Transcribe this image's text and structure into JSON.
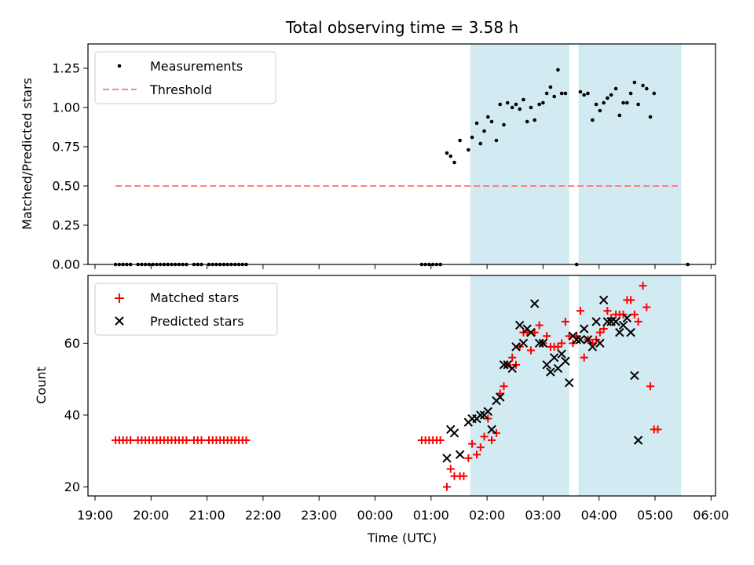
{
  "chart_data": {
    "title": "Total observing time = 3.58 h",
    "xlabel": "Time (UTC)",
    "x_ticks": [
      "19:00",
      "20:00",
      "21:00",
      "22:00",
      "23:00",
      "00:00",
      "01:00",
      "02:00",
      "03:00",
      "04:00",
      "05:00",
      "06:00"
    ],
    "colors": {
      "measure": "#000000",
      "threshold": "#ff7f7f",
      "matched": "#ff0000",
      "predicted": "#000000",
      "shade": "#add8e6"
    },
    "shaded_intervals": [
      [
        "01:42",
        "03:28"
      ],
      [
        "03:38",
        "05:28"
      ]
    ],
    "panels": [
      {
        "type": "scatter",
        "ylabel": "Matched/Predicted stars",
        "ylim": [
          0,
          1.35
        ],
        "y_ticks": [
          "0.00",
          "0.25",
          "0.50",
          "0.75",
          "1.00",
          "1.25"
        ],
        "legend": {
          "position": "upper-left",
          "entries": [
            "Measurements",
            "Threshold"
          ]
        },
        "threshold": {
          "value": 0.5,
          "x_range": [
            "19:22",
            "05:28"
          ]
        },
        "measurements": [
          [
            "19:22",
            0
          ],
          [
            "19:26",
            0
          ],
          [
            "19:30",
            0
          ],
          [
            "19:34",
            0
          ],
          [
            "19:38",
            0
          ],
          [
            "19:46",
            0
          ],
          [
            "19:50",
            0
          ],
          [
            "19:54",
            0
          ],
          [
            "19:58",
            0
          ],
          [
            "20:02",
            0
          ],
          [
            "20:06",
            0
          ],
          [
            "20:10",
            0
          ],
          [
            "20:14",
            0
          ],
          [
            "20:18",
            0
          ],
          [
            "20:22",
            0
          ],
          [
            "20:26",
            0
          ],
          [
            "20:30",
            0
          ],
          [
            "20:34",
            0
          ],
          [
            "20:38",
            0
          ],
          [
            "20:46",
            0
          ],
          [
            "20:50",
            0
          ],
          [
            "20:54",
            0
          ],
          [
            "21:02",
            0
          ],
          [
            "21:06",
            0
          ],
          [
            "21:10",
            0
          ],
          [
            "21:14",
            0
          ],
          [
            "21:18",
            0
          ],
          [
            "21:22",
            0
          ],
          [
            "21:26",
            0
          ],
          [
            "21:30",
            0
          ],
          [
            "21:34",
            0
          ],
          [
            "21:38",
            0
          ],
          [
            "21:42",
            0
          ],
          [
            "00:50",
            0
          ],
          [
            "00:54",
            0
          ],
          [
            "00:58",
            0
          ],
          [
            "01:02",
            0
          ],
          [
            "01:06",
            0
          ],
          [
            "01:10",
            0
          ],
          [
            "01:17",
            0.71
          ],
          [
            "01:21",
            0.69
          ],
          [
            "01:25",
            0.65
          ],
          [
            "01:31",
            0.79
          ],
          [
            "01:40",
            0.73
          ],
          [
            "01:44",
            0.81
          ],
          [
            "01:49",
            0.9
          ],
          [
            "01:53",
            0.77
          ],
          [
            "01:57",
            0.85
          ],
          [
            "02:01",
            0.94
          ],
          [
            "02:05",
            0.91
          ],
          [
            "02:10",
            0.79
          ],
          [
            "02:14",
            1.02
          ],
          [
            "02:18",
            0.89
          ],
          [
            "02:22",
            1.03
          ],
          [
            "02:27",
            1.0
          ],
          [
            "02:31",
            1.02
          ],
          [
            "02:35",
            0.99
          ],
          [
            "02:39",
            1.05
          ],
          [
            "02:43",
            0.91
          ],
          [
            "02:47",
            1.0
          ],
          [
            "02:51",
            0.92
          ],
          [
            "02:56",
            1.02
          ],
          [
            "03:00",
            1.03
          ],
          [
            "03:04",
            1.09
          ],
          [
            "03:08",
            1.13
          ],
          [
            "03:12",
            1.07
          ],
          [
            "03:16",
            1.24
          ],
          [
            "03:20",
            1.09
          ],
          [
            "03:24",
            1.09
          ],
          [
            "03:36",
            0
          ],
          [
            "03:40",
            1.1
          ],
          [
            "03:44",
            1.08
          ],
          [
            "03:48",
            1.09
          ],
          [
            "03:53",
            0.92
          ],
          [
            "03:57",
            1.02
          ],
          [
            "04:01",
            0.98
          ],
          [
            "04:05",
            1.03
          ],
          [
            "04:09",
            1.06
          ],
          [
            "04:13",
            1.08
          ],
          [
            "04:18",
            1.12
          ],
          [
            "04:22",
            0.95
          ],
          [
            "04:26",
            1.03
          ],
          [
            "04:30",
            1.03
          ],
          [
            "04:34",
            1.09
          ],
          [
            "04:38",
            1.16
          ],
          [
            "04:42",
            1.02
          ],
          [
            "04:47",
            1.14
          ],
          [
            "04:51",
            1.12
          ],
          [
            "04:55",
            0.94
          ],
          [
            "04:59",
            1.09
          ],
          [
            "05:35",
            0
          ]
        ]
      },
      {
        "type": "scatter",
        "ylabel": "Count",
        "ylim": [
          17,
          78
        ],
        "y_ticks": [
          "20",
          "40",
          "60"
        ],
        "legend": {
          "position": "upper-left",
          "entries": [
            "Matched stars",
            "Predicted stars"
          ]
        },
        "matched": [
          [
            "19:22",
            33
          ],
          [
            "19:26",
            33
          ],
          [
            "19:30",
            33
          ],
          [
            "19:34",
            33
          ],
          [
            "19:38",
            33
          ],
          [
            "19:46",
            33
          ],
          [
            "19:50",
            33
          ],
          [
            "19:54",
            33
          ],
          [
            "19:58",
            33
          ],
          [
            "20:02",
            33
          ],
          [
            "20:06",
            33
          ],
          [
            "20:10",
            33
          ],
          [
            "20:14",
            33
          ],
          [
            "20:18",
            33
          ],
          [
            "20:22",
            33
          ],
          [
            "20:26",
            33
          ],
          [
            "20:30",
            33
          ],
          [
            "20:34",
            33
          ],
          [
            "20:38",
            33
          ],
          [
            "20:46",
            33
          ],
          [
            "20:50",
            33
          ],
          [
            "20:54",
            33
          ],
          [
            "21:02",
            33
          ],
          [
            "21:06",
            33
          ],
          [
            "21:10",
            33
          ],
          [
            "21:14",
            33
          ],
          [
            "21:18",
            33
          ],
          [
            "21:22",
            33
          ],
          [
            "21:26",
            33
          ],
          [
            "21:30",
            33
          ],
          [
            "21:34",
            33
          ],
          [
            "21:38",
            33
          ],
          [
            "21:42",
            33
          ],
          [
            "00:50",
            33
          ],
          [
            "00:54",
            33
          ],
          [
            "00:58",
            33
          ],
          [
            "01:02",
            33
          ],
          [
            "01:06",
            33
          ],
          [
            "01:10",
            33
          ],
          [
            "01:17",
            20
          ],
          [
            "01:21",
            25
          ],
          [
            "01:25",
            23
          ],
          [
            "01:31",
            23
          ],
          [
            "01:35",
            23
          ],
          [
            "01:40",
            28
          ],
          [
            "01:44",
            32
          ],
          [
            "01:49",
            29
          ],
          [
            "01:53",
            31
          ],
          [
            "01:57",
            34
          ],
          [
            "02:01",
            39
          ],
          [
            "02:05",
            33
          ],
          [
            "02:10",
            35
          ],
          [
            "02:14",
            46
          ],
          [
            "02:18",
            48
          ],
          [
            "02:22",
            54
          ],
          [
            "02:27",
            56
          ],
          [
            "02:31",
            54
          ],
          [
            "02:35",
            59
          ],
          [
            "02:39",
            63
          ],
          [
            "02:43",
            63
          ],
          [
            "02:47",
            58
          ],
          [
            "02:51",
            63
          ],
          [
            "02:56",
            65
          ],
          [
            "03:00",
            60
          ],
          [
            "03:04",
            62
          ],
          [
            "03:08",
            59
          ],
          [
            "03:12",
            59
          ],
          [
            "03:16",
            59
          ],
          [
            "03:20",
            60
          ],
          [
            "03:24",
            66
          ],
          [
            "03:28",
            62
          ],
          [
            "03:32",
            60
          ],
          [
            "03:36",
            62
          ],
          [
            "03:40",
            69
          ],
          [
            "03:44",
            56
          ],
          [
            "03:48",
            61
          ],
          [
            "03:53",
            60
          ],
          [
            "03:57",
            61
          ],
          [
            "04:01",
            63
          ],
          [
            "04:05",
            64
          ],
          [
            "04:09",
            69
          ],
          [
            "04:13",
            67
          ],
          [
            "04:18",
            68
          ],
          [
            "04:22",
            68
          ],
          [
            "04:26",
            68
          ],
          [
            "04:30",
            72
          ],
          [
            "04:34",
            72
          ],
          [
            "04:38",
            68
          ],
          [
            "04:42",
            66
          ],
          [
            "04:47",
            76
          ],
          [
            "04:51",
            70
          ],
          [
            "04:55",
            48
          ],
          [
            "04:59",
            36
          ],
          [
            "05:03",
            36
          ]
        ],
        "predicted": [
          [
            "01:17",
            28
          ],
          [
            "01:21",
            36
          ],
          [
            "01:25",
            35
          ],
          [
            "01:31",
            29
          ],
          [
            "01:40",
            38
          ],
          [
            "01:44",
            39
          ],
          [
            "01:49",
            39
          ],
          [
            "01:53",
            40
          ],
          [
            "01:57",
            40
          ],
          [
            "02:01",
            41
          ],
          [
            "02:05",
            36
          ],
          [
            "02:10",
            44
          ],
          [
            "02:14",
            45
          ],
          [
            "02:18",
            54
          ],
          [
            "02:22",
            54
          ],
          [
            "02:27",
            53
          ],
          [
            "02:31",
            59
          ],
          [
            "02:35",
            65
          ],
          [
            "02:39",
            60
          ],
          [
            "02:43",
            64
          ],
          [
            "02:47",
            63
          ],
          [
            "02:51",
            71
          ],
          [
            "02:56",
            60
          ],
          [
            "03:00",
            60
          ],
          [
            "03:04",
            54
          ],
          [
            "03:08",
            52
          ],
          [
            "03:12",
            56
          ],
          [
            "03:16",
            53
          ],
          [
            "03:20",
            57
          ],
          [
            "03:24",
            55
          ],
          [
            "03:28",
            49
          ],
          [
            "03:32",
            62
          ],
          [
            "03:36",
            61
          ],
          [
            "03:40",
            61
          ],
          [
            "03:44",
            64
          ],
          [
            "03:48",
            61
          ],
          [
            "03:53",
            59
          ],
          [
            "03:57",
            66
          ],
          [
            "04:01",
            60
          ],
          [
            "04:05",
            72
          ],
          [
            "04:09",
            66
          ],
          [
            "04:13",
            66
          ],
          [
            "04:18",
            66
          ],
          [
            "04:22",
            63
          ],
          [
            "04:26",
            65
          ],
          [
            "04:30",
            67
          ],
          [
            "04:34",
            63
          ],
          [
            "04:38",
            51
          ],
          [
            "04:42",
            33
          ]
        ]
      }
    ]
  }
}
